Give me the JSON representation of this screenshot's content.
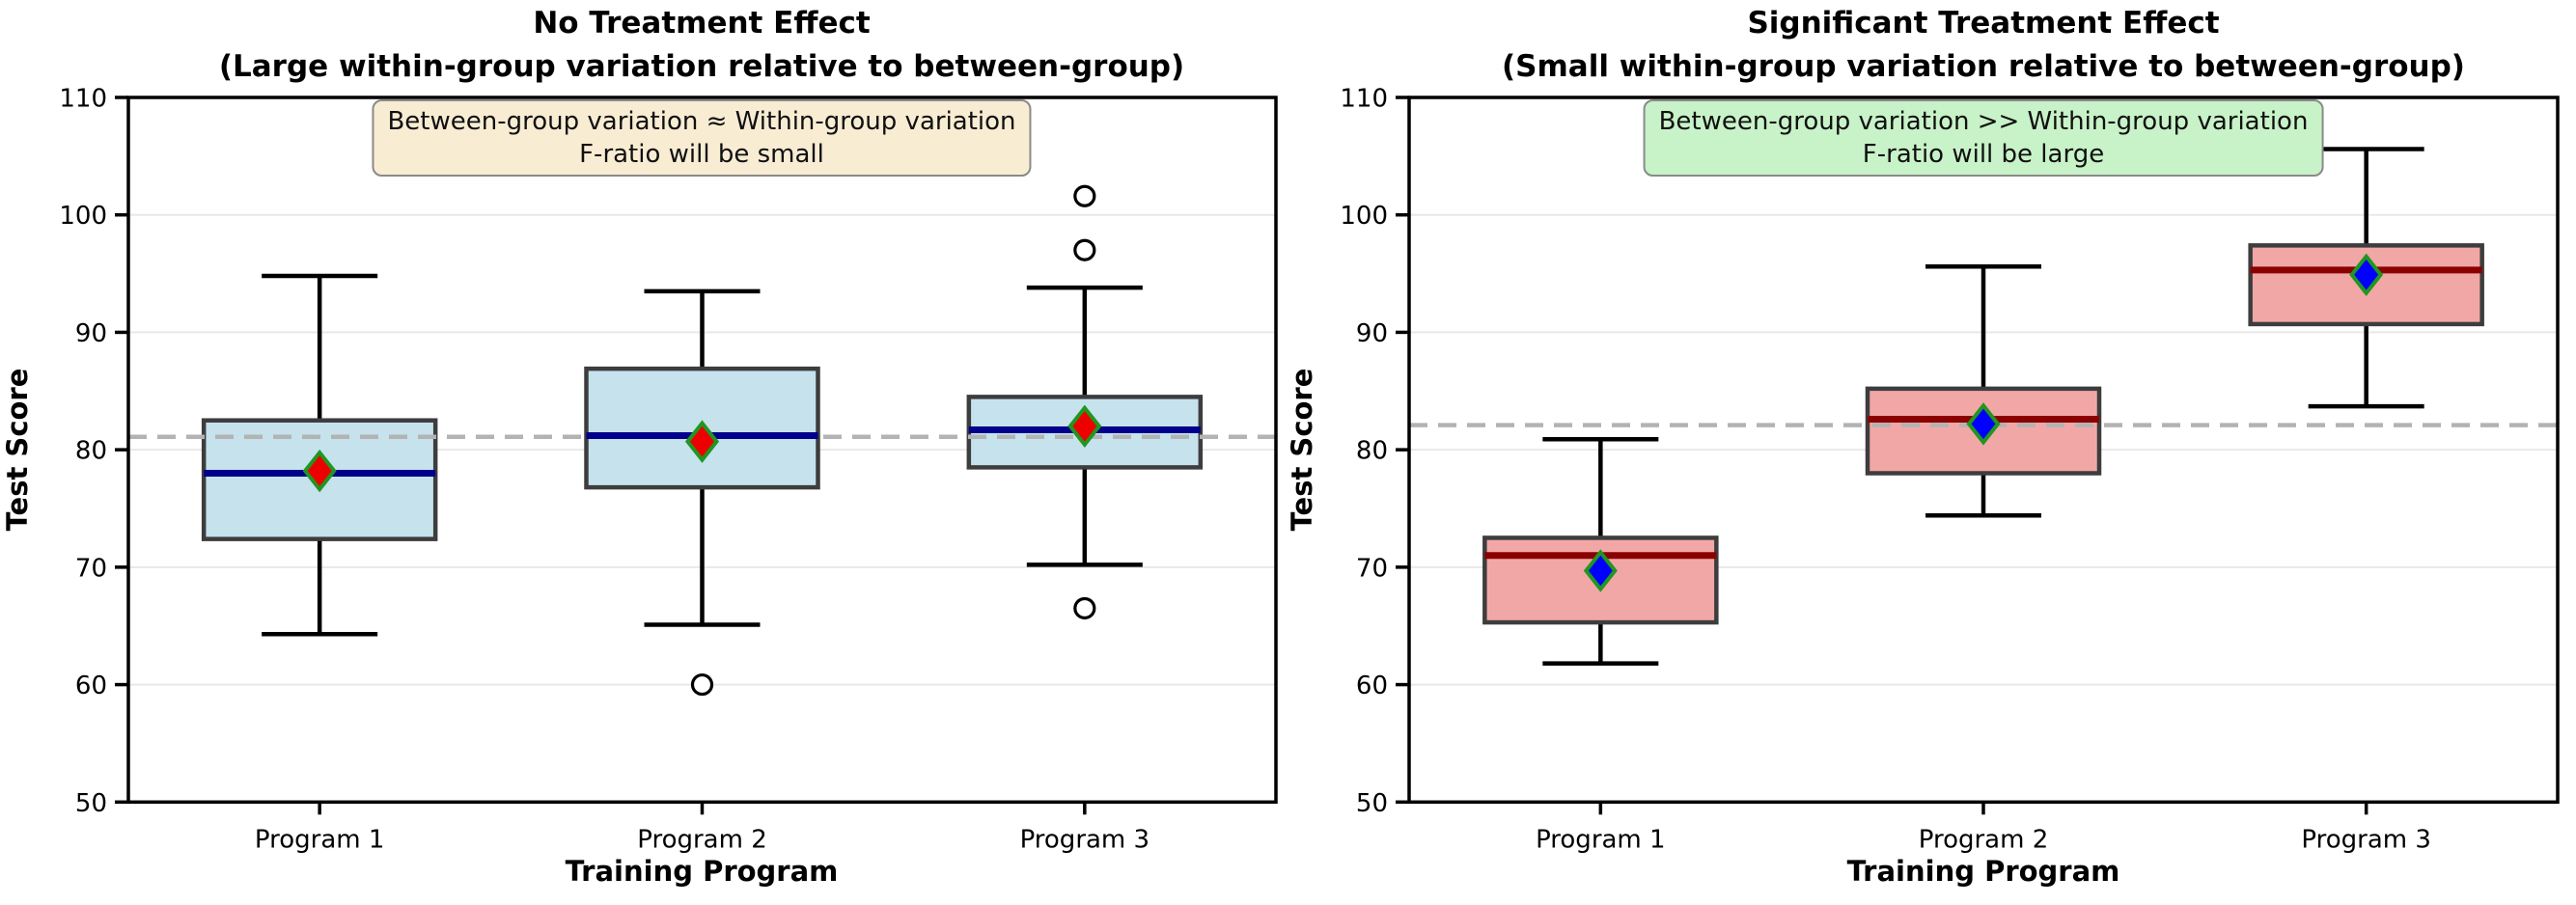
{
  "chart_data": [
    {
      "type": "boxplot",
      "panel": "left",
      "title_line1": "No Treatment Effect",
      "title_line2": "(Large within-group variation relative to between-group)",
      "annotation_line1": "Between-group variation ≈ Within-group variation",
      "annotation_line2": "F-ratio will be small",
      "annotation_bg": "#f8ecd3",
      "annotation_border": "#8a8a8a",
      "xlabel": "Training Program",
      "ylabel": "Test Score",
      "ylim": [
        50,
        110
      ],
      "yticks": [
        50,
        60,
        70,
        80,
        90,
        100,
        110
      ],
      "categories": [
        "Program 1",
        "Program 2",
        "Program 3"
      ],
      "grid": true,
      "grand_mean": 81.1,
      "grand_mean_style": "dashed",
      "grand_mean_color": "#b3b3b3",
      "box_fill": "#c5e2ed",
      "box_edge": "#3d3d3d",
      "whisker_color": "#000000",
      "median_color": "#00008b",
      "mean_marker": "diamond",
      "mean_fill": "#ee0000",
      "mean_edge": "#219621",
      "boxes": [
        {
          "label": "Program 1",
          "whisker_low": 64.3,
          "q1": 72.4,
          "median": 78.0,
          "q3": 82.5,
          "whisker_high": 94.8,
          "mean": 78.2,
          "outliers": []
        },
        {
          "label": "Program 2",
          "whisker_low": 65.1,
          "q1": 76.8,
          "median": 81.2,
          "q3": 86.9,
          "whisker_high": 93.5,
          "mean": 80.7,
          "outliers": [
            60.0
          ]
        },
        {
          "label": "Program 3",
          "whisker_low": 70.2,
          "q1": 78.5,
          "median": 81.7,
          "q3": 84.5,
          "whisker_high": 93.8,
          "mean": 82.0,
          "outliers": [
            101.6,
            97.0,
            66.5
          ]
        }
      ]
    },
    {
      "type": "boxplot",
      "panel": "right",
      "title_line1": "Significant Treatment Effect",
      "title_line2": "(Small within-group variation relative to between-group)",
      "annotation_line1": "Between-group variation >> Within-group variation",
      "annotation_line2": "F-ratio will be large",
      "annotation_bg": "#c8f2c8",
      "annotation_border": "#8a8a8a",
      "xlabel": "Training Program",
      "ylabel": "Test Score",
      "ylim": [
        50,
        110
      ],
      "yticks": [
        50,
        60,
        70,
        80,
        90,
        100,
        110
      ],
      "categories": [
        "Program 1",
        "Program 2",
        "Program 3"
      ],
      "grid": true,
      "grand_mean": 82.1,
      "grand_mean_style": "dashed",
      "grand_mean_color": "#b3b3b3",
      "box_fill": "#f2a7a7",
      "box_edge": "#3d3d3d",
      "whisker_color": "#000000",
      "median_color": "#8b0000",
      "mean_marker": "diamond",
      "mean_fill": "#0000ff",
      "mean_edge": "#219621",
      "boxes": [
        {
          "label": "Program 1",
          "whisker_low": 61.8,
          "q1": 65.3,
          "median": 71.0,
          "q3": 72.5,
          "whisker_high": 80.9,
          "mean": 69.7,
          "outliers": []
        },
        {
          "label": "Program 2",
          "whisker_low": 74.4,
          "q1": 78.0,
          "median": 82.6,
          "q3": 85.2,
          "whisker_high": 95.6,
          "mean": 82.2,
          "outliers": []
        },
        {
          "label": "Program 3",
          "whisker_low": 83.7,
          "q1": 90.7,
          "median": 95.3,
          "q3": 97.4,
          "whisker_high": 105.6,
          "mean": 94.9,
          "outliers": []
        }
      ]
    }
  ]
}
